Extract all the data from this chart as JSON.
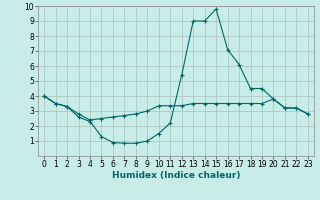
{
  "xlabel": "Humidex (Indice chaleur)",
  "xlim": [
    -0.5,
    23.5
  ],
  "ylim": [
    0,
    10
  ],
  "xticks": [
    0,
    1,
    2,
    3,
    4,
    5,
    6,
    7,
    8,
    9,
    10,
    11,
    12,
    13,
    14,
    15,
    16,
    17,
    18,
    19,
    20,
    21,
    22,
    23
  ],
  "yticks": [
    1,
    2,
    3,
    4,
    5,
    6,
    7,
    8,
    9,
    10
  ],
  "background_color": "#c8ece8",
  "grid_color": "#b0c8c4",
  "line_color": "#006666",
  "line1_x": [
    0,
    1,
    2,
    3,
    4,
    5,
    6,
    7,
    8,
    9,
    10,
    11,
    12,
    13,
    14,
    15,
    16,
    17,
    18,
    19,
    20,
    21,
    22,
    23
  ],
  "line1_y": [
    4.0,
    3.5,
    3.3,
    2.6,
    2.3,
    1.3,
    0.9,
    0.85,
    0.85,
    1.0,
    1.5,
    2.2,
    5.4,
    9.0,
    9.0,
    9.8,
    7.1,
    6.1,
    4.5,
    4.5,
    3.8,
    3.2,
    3.2,
    2.8
  ],
  "line2_x": [
    0,
    1,
    2,
    3,
    4,
    5,
    6,
    7,
    8,
    9,
    10,
    11,
    12,
    13,
    14,
    15,
    16,
    17,
    18,
    19,
    20,
    21,
    22,
    23
  ],
  "line2_y": [
    4.0,
    3.5,
    3.3,
    2.8,
    2.4,
    2.5,
    2.6,
    2.7,
    2.8,
    3.0,
    3.35,
    3.35,
    3.35,
    3.5,
    3.5,
    3.5,
    3.5,
    3.5,
    3.5,
    3.5,
    3.8,
    3.2,
    3.2,
    2.8
  ],
  "tick_fontsize": 5.5,
  "xlabel_fontsize": 6.5
}
